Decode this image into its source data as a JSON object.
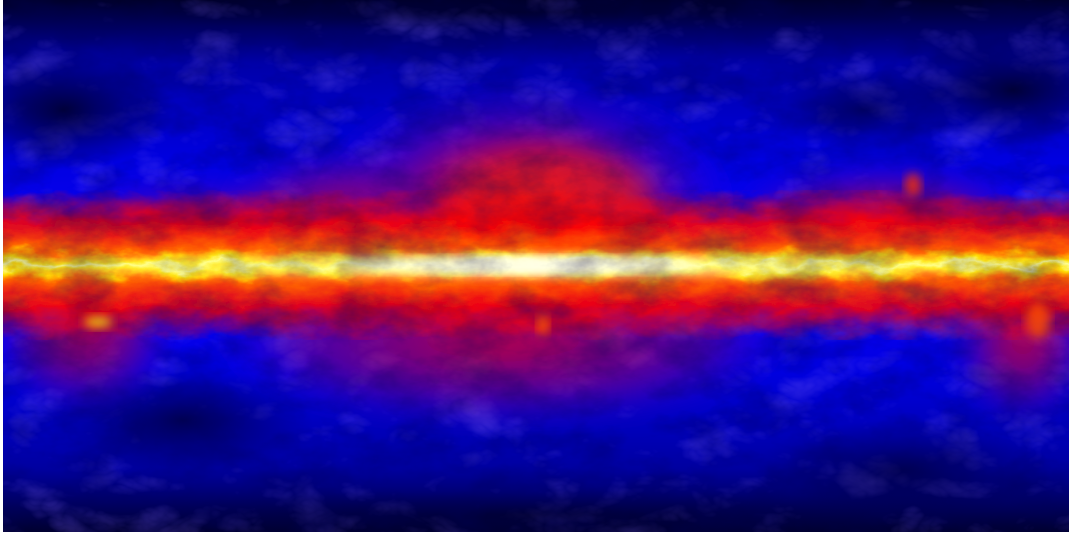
{
  "image": {
    "subject": "full-sky map",
    "projection": "equirectangular",
    "colormap": {
      "low": "#00001a",
      "mid_low": "#0000ff",
      "mid": "#ff0000",
      "high": "#ffff00",
      "peak": "#ffffe0"
    }
  }
}
